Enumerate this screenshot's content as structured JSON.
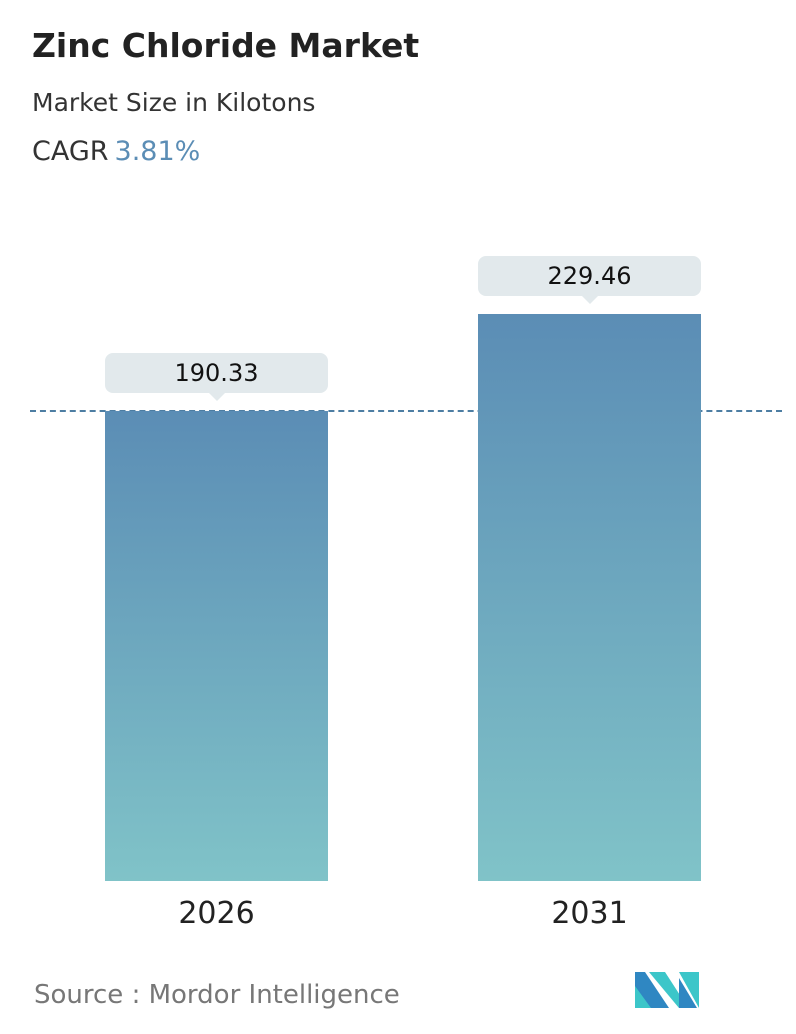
{
  "header": {
    "title": "Zinc Chloride Market",
    "subtitle": "Market Size in Kilotons",
    "cagr_label": "CAGR",
    "cagr_value": "3.81%"
  },
  "chart_data": {
    "type": "bar",
    "categories": [
      "2026",
      "2031"
    ],
    "values": [
      190.33,
      229.46
    ],
    "value_labels": [
      "190.33",
      "229.46"
    ],
    "ylim": [
      0,
      240
    ],
    "grid": false,
    "reference_line": {
      "value": 190.33,
      "style": "dashed"
    },
    "colors": {
      "bar_top": "#5b8db5",
      "bar_bottom": "#80c3c8",
      "label_bg": "#e2e9ec",
      "accent": "#5b8db5"
    }
  },
  "footer": {
    "source": "Source :  Mordor Intelligence",
    "logo": "Mordor Intelligence"
  }
}
